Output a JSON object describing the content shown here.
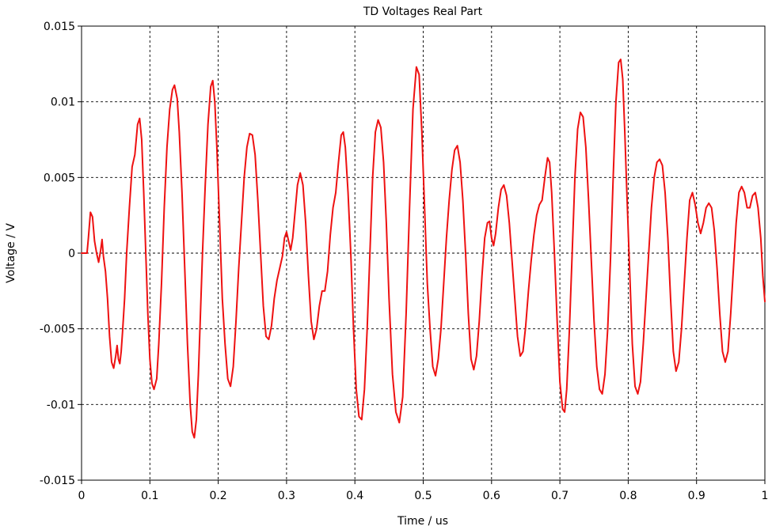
{
  "chart_data": {
    "type": "line",
    "title": "TD Voltages Real Part",
    "xlabel": "Time / us",
    "ylabel": "Voltage / V",
    "xlim": [
      0,
      1
    ],
    "ylim": [
      -0.015,
      0.015
    ],
    "x_ticks": [
      0,
      0.1,
      0.2,
      0.3,
      0.4,
      0.5,
      0.6,
      0.7,
      0.8,
      0.9,
      1
    ],
    "y_ticks": [
      -0.015,
      -0.01,
      -0.005,
      0,
      0.005,
      0.01,
      0.015
    ],
    "x_tick_labels": [
      "0",
      "0.1",
      "0.2",
      "0.3",
      "0.4",
      "0.5",
      "0.6",
      "0.7",
      "0.8",
      "0.9",
      "1"
    ],
    "y_tick_labels": [
      "-0.015",
      "-0.01",
      "-0.005",
      "0",
      "0.005",
      "0.01",
      "0.015"
    ],
    "grid": true,
    "colors": {
      "series": "#ee1111"
    },
    "series": [
      {
        "color": "#ee1111",
        "points": [
          [
            0.0,
            0.0
          ],
          [
            0.008,
            0.0
          ],
          [
            0.01,
            0.001
          ],
          [
            0.013,
            0.0027
          ],
          [
            0.016,
            0.0024
          ],
          [
            0.019,
            0.0008
          ],
          [
            0.022,
            0.0
          ],
          [
            0.025,
            -0.0006
          ],
          [
            0.028,
            0.0002
          ],
          [
            0.03,
            0.0009
          ],
          [
            0.032,
            -0.0002
          ],
          [
            0.035,
            -0.0012
          ],
          [
            0.038,
            -0.003
          ],
          [
            0.041,
            -0.0055
          ],
          [
            0.044,
            -0.0072
          ],
          [
            0.047,
            -0.0076
          ],
          [
            0.05,
            -0.0068
          ],
          [
            0.052,
            -0.0061
          ],
          [
            0.054,
            -0.007
          ],
          [
            0.056,
            -0.0073
          ],
          [
            0.058,
            -0.0065
          ],
          [
            0.06,
            -0.0052
          ],
          [
            0.063,
            -0.003
          ],
          [
            0.066,
            0.0
          ],
          [
            0.07,
            0.003
          ],
          [
            0.074,
            0.0057
          ],
          [
            0.078,
            0.0065
          ],
          [
            0.082,
            0.0085
          ],
          [
            0.085,
            0.0089
          ],
          [
            0.088,
            0.0075
          ],
          [
            0.091,
            0.004
          ],
          [
            0.094,
            0.0
          ],
          [
            0.097,
            -0.004
          ],
          [
            0.1,
            -0.007
          ],
          [
            0.103,
            -0.0086
          ],
          [
            0.106,
            -0.009
          ],
          [
            0.11,
            -0.0083
          ],
          [
            0.113,
            -0.006
          ],
          [
            0.117,
            -0.002
          ],
          [
            0.121,
            0.003
          ],
          [
            0.125,
            0.007
          ],
          [
            0.129,
            0.0095
          ],
          [
            0.133,
            0.0108
          ],
          [
            0.136,
            0.0111
          ],
          [
            0.14,
            0.0102
          ],
          [
            0.143,
            0.008
          ],
          [
            0.147,
            0.004
          ],
          [
            0.151,
            -0.001
          ],
          [
            0.155,
            -0.006
          ],
          [
            0.159,
            -0.01
          ],
          [
            0.162,
            -0.0118
          ],
          [
            0.165,
            -0.0122
          ],
          [
            0.168,
            -0.011
          ],
          [
            0.171,
            -0.008
          ],
          [
            0.174,
            -0.004
          ],
          [
            0.177,
            0.0
          ],
          [
            0.181,
            0.0045
          ],
          [
            0.185,
            0.0085
          ],
          [
            0.189,
            0.011
          ],
          [
            0.192,
            0.0114
          ],
          [
            0.195,
            0.01
          ],
          [
            0.198,
            0.007
          ],
          [
            0.202,
            0.002
          ],
          [
            0.206,
            -0.003
          ],
          [
            0.21,
            -0.006
          ],
          [
            0.214,
            -0.0083
          ],
          [
            0.218,
            -0.0088
          ],
          [
            0.222,
            -0.0075
          ],
          [
            0.226,
            -0.0045
          ],
          [
            0.23,
            -0.001
          ],
          [
            0.234,
            0.002
          ],
          [
            0.238,
            0.005
          ],
          [
            0.242,
            0.007
          ],
          [
            0.246,
            0.0079
          ],
          [
            0.25,
            0.0078
          ],
          [
            0.254,
            0.0065
          ],
          [
            0.258,
            0.0035
          ],
          [
            0.262,
            0.0
          ],
          [
            0.266,
            -0.0035
          ],
          [
            0.27,
            -0.0055
          ],
          [
            0.274,
            -0.0057
          ],
          [
            0.278,
            -0.0048
          ],
          [
            0.282,
            -0.003
          ],
          [
            0.286,
            -0.0018
          ],
          [
            0.29,
            -0.001
          ],
          [
            0.294,
            -0.0002
          ],
          [
            0.297,
            0.001
          ],
          [
            0.3,
            0.0014
          ],
          [
            0.303,
            0.0008
          ],
          [
            0.306,
            0.0002
          ],
          [
            0.309,
            0.001
          ],
          [
            0.312,
            0.0025
          ],
          [
            0.316,
            0.0045
          ],
          [
            0.32,
            0.0053
          ],
          [
            0.324,
            0.0045
          ],
          [
            0.328,
            0.002
          ],
          [
            0.332,
            -0.0015
          ],
          [
            0.336,
            -0.0045
          ],
          [
            0.34,
            -0.0057
          ],
          [
            0.344,
            -0.005
          ],
          [
            0.348,
            -0.0035
          ],
          [
            0.352,
            -0.0025
          ],
          [
            0.356,
            -0.0025
          ],
          [
            0.36,
            -0.0012
          ],
          [
            0.364,
            0.0012
          ],
          [
            0.368,
            0.003
          ],
          [
            0.372,
            0.004
          ],
          [
            0.376,
            0.006
          ],
          [
            0.38,
            0.0078
          ],
          [
            0.383,
            0.008
          ],
          [
            0.386,
            0.007
          ],
          [
            0.39,
            0.004
          ],
          [
            0.394,
            0.0
          ],
          [
            0.398,
            -0.005
          ],
          [
            0.402,
            -0.009
          ],
          [
            0.406,
            -0.0108
          ],
          [
            0.41,
            -0.011
          ],
          [
            0.414,
            -0.009
          ],
          [
            0.418,
            -0.005
          ],
          [
            0.422,
            0.0
          ],
          [
            0.426,
            0.005
          ],
          [
            0.43,
            0.008
          ],
          [
            0.434,
            0.0088
          ],
          [
            0.438,
            0.0083
          ],
          [
            0.442,
            0.006
          ],
          [
            0.446,
            0.002
          ],
          [
            0.45,
            -0.003
          ],
          [
            0.455,
            -0.008
          ],
          [
            0.46,
            -0.0105
          ],
          [
            0.465,
            -0.0112
          ],
          [
            0.47,
            -0.0095
          ],
          [
            0.475,
            -0.004
          ],
          [
            0.48,
            0.003
          ],
          [
            0.485,
            0.0095
          ],
          [
            0.49,
            0.0123
          ],
          [
            0.494,
            0.0118
          ],
          [
            0.498,
            0.008
          ],
          [
            0.502,
            0.003
          ],
          [
            0.506,
            -0.002
          ],
          [
            0.51,
            -0.005
          ],
          [
            0.514,
            -0.0075
          ],
          [
            0.518,
            -0.0081
          ],
          [
            0.522,
            -0.007
          ],
          [
            0.526,
            -0.005
          ],
          [
            0.53,
            -0.002
          ],
          [
            0.534,
            0.001
          ],
          [
            0.538,
            0.0035
          ],
          [
            0.542,
            0.0055
          ],
          [
            0.546,
            0.0068
          ],
          [
            0.55,
            0.0071
          ],
          [
            0.554,
            0.006
          ],
          [
            0.558,
            0.0035
          ],
          [
            0.562,
            0.0
          ],
          [
            0.566,
            -0.004
          ],
          [
            0.57,
            -0.007
          ],
          [
            0.574,
            -0.0077
          ],
          [
            0.578,
            -0.0068
          ],
          [
            0.582,
            -0.0045
          ],
          [
            0.586,
            -0.0015
          ],
          [
            0.59,
            0.001
          ],
          [
            0.594,
            0.002
          ],
          [
            0.597,
            0.0021
          ],
          [
            0.6,
            0.001
          ],
          [
            0.603,
            0.0005
          ],
          [
            0.606,
            0.0013
          ],
          [
            0.61,
            0.003
          ],
          [
            0.614,
            0.0042
          ],
          [
            0.618,
            0.0045
          ],
          [
            0.622,
            0.0038
          ],
          [
            0.626,
            0.002
          ],
          [
            0.63,
            -0.0005
          ],
          [
            0.634,
            -0.003
          ],
          [
            0.638,
            -0.0055
          ],
          [
            0.642,
            -0.0068
          ],
          [
            0.646,
            -0.0065
          ],
          [
            0.65,
            -0.0048
          ],
          [
            0.654,
            -0.0025
          ],
          [
            0.658,
            -0.0005
          ],
          [
            0.662,
            0.0012
          ],
          [
            0.666,
            0.0025
          ],
          [
            0.67,
            0.0032
          ],
          [
            0.674,
            0.0035
          ],
          [
            0.678,
            0.005
          ],
          [
            0.682,
            0.0063
          ],
          [
            0.685,
            0.006
          ],
          [
            0.688,
            0.004
          ],
          [
            0.692,
            0.0
          ],
          [
            0.696,
            -0.0045
          ],
          [
            0.7,
            -0.0085
          ],
          [
            0.704,
            -0.0103
          ],
          [
            0.707,
            -0.0105
          ],
          [
            0.71,
            -0.009
          ],
          [
            0.714,
            -0.005
          ],
          [
            0.718,
            0.0
          ],
          [
            0.722,
            0.005
          ],
          [
            0.726,
            0.0082
          ],
          [
            0.73,
            0.0093
          ],
          [
            0.734,
            0.009
          ],
          [
            0.738,
            0.007
          ],
          [
            0.742,
            0.0035
          ],
          [
            0.746,
            -0.0005
          ],
          [
            0.75,
            -0.0045
          ],
          [
            0.754,
            -0.0075
          ],
          [
            0.758,
            -0.009
          ],
          [
            0.762,
            -0.0093
          ],
          [
            0.766,
            -0.008
          ],
          [
            0.77,
            -0.005
          ],
          [
            0.774,
            -0.0005
          ],
          [
            0.778,
            0.005
          ],
          [
            0.782,
            0.01
          ],
          [
            0.786,
            0.0126
          ],
          [
            0.789,
            0.0128
          ],
          [
            0.792,
            0.0115
          ],
          [
            0.795,
            0.008
          ],
          [
            0.798,
            0.004
          ],
          [
            0.802,
            -0.001
          ],
          [
            0.806,
            -0.006
          ],
          [
            0.81,
            -0.0088
          ],
          [
            0.814,
            -0.0093
          ],
          [
            0.818,
            -0.0085
          ],
          [
            0.822,
            -0.006
          ],
          [
            0.826,
            -0.003
          ],
          [
            0.83,
            0.0
          ],
          [
            0.834,
            0.003
          ],
          [
            0.838,
            0.005
          ],
          [
            0.842,
            0.006
          ],
          [
            0.846,
            0.0062
          ],
          [
            0.85,
            0.0058
          ],
          [
            0.854,
            0.004
          ],
          [
            0.858,
            0.001
          ],
          [
            0.862,
            -0.003
          ],
          [
            0.866,
            -0.0065
          ],
          [
            0.87,
            -0.0078
          ],
          [
            0.874,
            -0.0072
          ],
          [
            0.878,
            -0.005
          ],
          [
            0.882,
            -0.002
          ],
          [
            0.886,
            0.001
          ],
          [
            0.89,
            0.0035
          ],
          [
            0.894,
            0.004
          ],
          [
            0.898,
            0.0032
          ],
          [
            0.902,
            0.002
          ],
          [
            0.906,
            0.0013
          ],
          [
            0.91,
            0.002
          ],
          [
            0.914,
            0.003
          ],
          [
            0.918,
            0.0033
          ],
          [
            0.922,
            0.003
          ],
          [
            0.926,
            0.0015
          ],
          [
            0.93,
            -0.001
          ],
          [
            0.934,
            -0.004
          ],
          [
            0.938,
            -0.0065
          ],
          [
            0.942,
            -0.0072
          ],
          [
            0.946,
            -0.0065
          ],
          [
            0.95,
            -0.004
          ],
          [
            0.954,
            -0.001
          ],
          [
            0.958,
            0.002
          ],
          [
            0.962,
            0.004
          ],
          [
            0.966,
            0.0044
          ],
          [
            0.97,
            0.004
          ],
          [
            0.974,
            0.003
          ],
          [
            0.978,
            0.003
          ],
          [
            0.982,
            0.0038
          ],
          [
            0.986,
            0.004
          ],
          [
            0.99,
            0.003
          ],
          [
            0.994,
            0.001
          ],
          [
            0.997,
            -0.0015
          ],
          [
            1.0,
            -0.0032
          ]
        ]
      }
    ]
  }
}
